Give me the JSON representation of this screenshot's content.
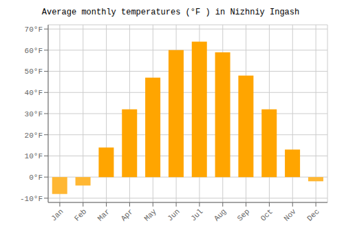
{
  "chart_data": {
    "type": "bar",
    "title": "Average monthly temperatures (°F ) in Nizhniy Ingash",
    "categories": [
      "Jan",
      "Feb",
      "Mar",
      "Apr",
      "May",
      "Jun",
      "Jul",
      "Aug",
      "Sep",
      "Oct",
      "Nov",
      "Dec"
    ],
    "values": [
      -8,
      -4,
      14,
      32,
      47,
      60,
      64,
      59,
      48,
      32,
      13,
      -2
    ],
    "colors": [
      "#FFB733",
      "#FFB733",
      "#FFA500",
      "#FFA500",
      "#FFA500",
      "#FFA500",
      "#FFA500",
      "#FFA500",
      "#FFA500",
      "#FFA500",
      "#FFA500",
      "#FFB733"
    ],
    "ylim": [
      -12,
      72
    ],
    "yticks": [
      {
        "value": -10,
        "label": "-10°F"
      },
      {
        "value": 0,
        "label": "0°F"
      },
      {
        "value": 10,
        "label": "10°F"
      },
      {
        "value": 20,
        "label": "20°F"
      },
      {
        "value": 30,
        "label": "30°F"
      },
      {
        "value": 40,
        "label": "40°F"
      },
      {
        "value": 50,
        "label": "50°F"
      },
      {
        "value": 60,
        "label": "60°F"
      },
      {
        "value": 70,
        "label": "70°F"
      }
    ],
    "grid": true
  }
}
